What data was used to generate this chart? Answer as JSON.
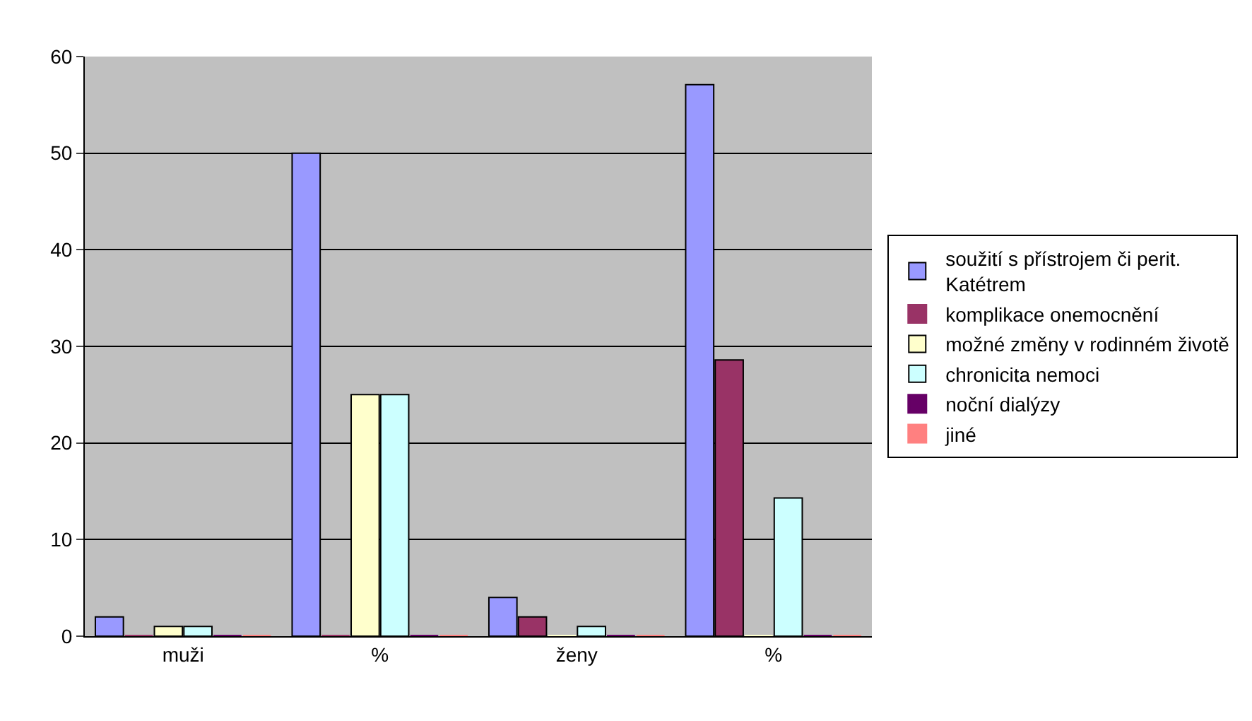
{
  "chart_data": {
    "type": "bar",
    "categories": [
      "muži",
      "%",
      "ženy",
      "%"
    ],
    "series": [
      {
        "name": "soužití s přístrojem či perit. Katétrem",
        "color": "#9999ff",
        "values": [
          2,
          50,
          4,
          57.1
        ]
      },
      {
        "name": "komplikace onemocnění",
        "color": "#993366",
        "values": [
          0,
          0,
          2,
          28.6
        ]
      },
      {
        "name": "možné změny v rodinném životě",
        "color": "#ffffcc",
        "values": [
          1,
          25,
          0,
          0
        ]
      },
      {
        "name": "chronicita nemoci",
        "color": "#ccffff",
        "values": [
          1,
          25,
          1,
          14.3
        ]
      },
      {
        "name": "noční dialýzy",
        "color": "#660066",
        "values": [
          0,
          0,
          0,
          0
        ]
      },
      {
        "name": "jiné",
        "color": "#ff8080",
        "values": [
          0,
          0,
          0,
          0
        ]
      }
    ],
    "ylim": [
      0,
      60
    ],
    "yticks": [
      0,
      10,
      20,
      30,
      40,
      50,
      60
    ],
    "grid": "y",
    "legend": "right"
  }
}
